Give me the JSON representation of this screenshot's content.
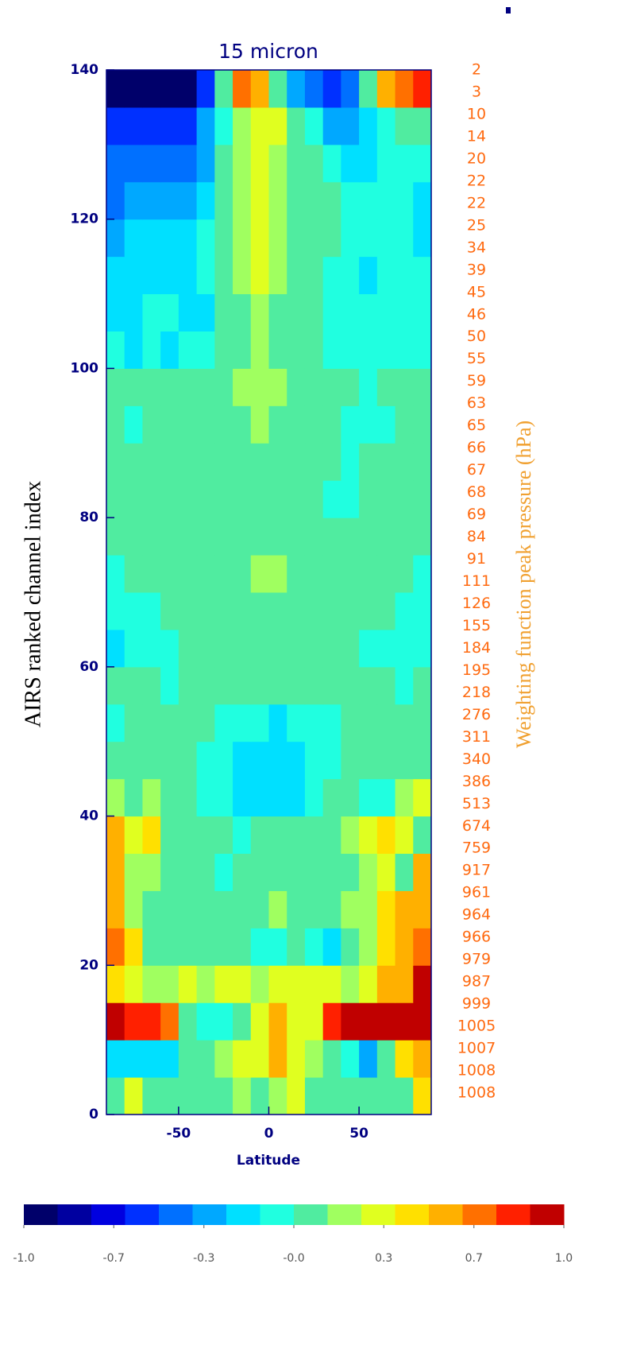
{
  "chart_data": {
    "type": "heatmap",
    "title": "15 micron",
    "xlabel": "Latitude",
    "ylabel": "AIRS ranked channel index",
    "y2label": "Weighting function peak pressure (hPa)",
    "xlim": [
      -90,
      90
    ],
    "ylim": [
      0,
      140
    ],
    "xticks": [
      -50,
      0,
      50
    ],
    "yticks": [
      0,
      20,
      40,
      60,
      80,
      100,
      120,
      140
    ],
    "right_labels": [
      2,
      3,
      10,
      14,
      20,
      22,
      22,
      25,
      34,
      39,
      45,
      46,
      50,
      55,
      59,
      63,
      65,
      66,
      67,
      68,
      69,
      84,
      91,
      111,
      126,
      155,
      184,
      195,
      218,
      276,
      311,
      340,
      386,
      513,
      674,
      759,
      917,
      961,
      964,
      966,
      979,
      987,
      999,
      1005,
      1007,
      1008,
      1008
    ],
    "clim": [
      -1,
      1
    ],
    "colormap": [
      "#00006a",
      "#0000a0",
      "#0000e0",
      "#0030ff",
      "#0070ff",
      "#00a8ff",
      "#00e0ff",
      "#20ffe0",
      "#50eca0",
      "#a0ff60",
      "#e0ff20",
      "#ffe000",
      "#ffb000",
      "#ff7000",
      "#ff2000",
      "#c00000"
    ],
    "colorbar_ticks": [
      {
        "value": -1,
        "label": "-1.0"
      },
      {
        "value": -0.667,
        "label": "-0.7"
      },
      {
        "value": -0.333,
        "label": "-0.3"
      },
      {
        "value": 0,
        "label": "-0.0"
      },
      {
        "value": 0.333,
        "label": "0.3"
      },
      {
        "value": 0.667,
        "label": "0.7"
      },
      {
        "value": 1,
        "label": "1.0"
      }
    ],
    "values": [
      [
        0,
        0.3,
        0.1,
        0.1,
        0,
        0.1,
        0.1,
        0.2,
        0.1,
        0.2,
        0.3,
        0.1,
        0,
        0,
        0,
        0.1,
        0.1,
        0.4
      ],
      [
        -0.2,
        -0.25,
        -0.25,
        -0.2,
        0,
        0.1,
        0.2,
        0.3,
        0.3,
        0.5,
        0.35,
        0.2,
        0,
        -0.1,
        -0.3,
        0,
        0.4,
        0.6
      ],
      [
        0.9,
        0.85,
        0.8,
        0.7,
        0,
        -0.1,
        -0.05,
        0.05,
        0.3,
        0.6,
        0.35,
        0.3,
        0.8,
        0.9,
        0.9,
        0.9,
        0.9,
        0.9
      ],
      [
        0.4,
        0.35,
        0.2,
        0.2,
        0.25,
        0.15,
        0.3,
        0.3,
        0.2,
        0.3,
        0.35,
        0.3,
        0.25,
        0.2,
        0.3,
        0.5,
        0.6,
        0.9
      ],
      [
        0.7,
        0.4,
        0.1,
        0.05,
        0,
        0.1,
        0,
        0.05,
        -0.1,
        -0.1,
        0,
        -0.1,
        -0.2,
        0.1,
        0.2,
        0.4,
        0.5,
        0.7
      ],
      [
        0.5,
        0.2,
        0.1,
        0,
        0.05,
        0.1,
        0,
        0.1,
        0.05,
        0.15,
        0.1,
        0.05,
        0.1,
        0.2,
        0.2,
        0.4,
        0.5,
        0.5
      ],
      [
        0.5,
        0.15,
        0.15,
        0.1,
        0.05,
        0.05,
        -0.1,
        0,
        0,
        0,
        0,
        0,
        0.1,
        0.1,
        0.2,
        0.3,
        0.1,
        0.6
      ],
      [
        0.5,
        0.3,
        0.4,
        0.1,
        0.05,
        0,
        0,
        -0.05,
        0,
        0,
        0,
        0,
        0.1,
        0.2,
        0.3,
        0.4,
        0.3,
        0.1
      ],
      [
        0.2,
        0.1,
        0.2,
        0.1,
        0,
        -0.1,
        -0.1,
        -0.2,
        -0.2,
        -0.2,
        -0.2,
        -0.1,
        0,
        0,
        -0.1,
        -0.1,
        0.2,
        0.3
      ],
      [
        0.1,
        0.1,
        0.1,
        0.05,
        0,
        -0.05,
        -0.1,
        -0.15,
        -0.2,
        -0.2,
        -0.2,
        -0.1,
        -0.05,
        0,
        0,
        0,
        0,
        0.05
      ],
      [
        -0.05,
        0,
        0,
        0,
        0,
        0,
        -0.05,
        -0.1,
        -0.1,
        -0.15,
        -0.1,
        -0.1,
        -0.05,
        0,
        0,
        0,
        0,
        0
      ],
      [
        0,
        0,
        0,
        -0.05,
        0,
        0,
        0,
        0,
        0,
        0,
        0,
        0,
        0,
        0,
        0,
        0,
        -0.05,
        0
      ],
      [
        -0.15,
        -0.1,
        -0.1,
        -0.05,
        0,
        0,
        0.05,
        0.1,
        0.1,
        0.1,
        0.05,
        0,
        0,
        0,
        -0.05,
        -0.05,
        -0.1,
        -0.1
      ],
      [
        -0.1,
        -0.1,
        -0.05,
        0,
        0,
        0,
        0.05,
        0.05,
        0.1,
        0.1,
        0.05,
        0,
        0,
        0,
        0,
        0,
        -0.05,
        -0.1
      ],
      [
        -0.05,
        0,
        0,
        0,
        0,
        0.05,
        0.1,
        0.1,
        0.15,
        0.15,
        0.1,
        0.1,
        0.05,
        0,
        0,
        0,
        0,
        -0.05
      ],
      [
        0,
        0,
        0.05,
        0,
        0,
        0,
        0.05,
        0.05,
        0.1,
        0.1,
        0.05,
        0,
        0,
        0,
        0,
        0,
        0,
        0
      ],
      [
        0,
        0,
        0,
        0.05,
        0,
        0,
        0.05,
        0.1,
        0.1,
        0.1,
        0.05,
        0,
        -0.05,
        -0.05,
        0,
        0,
        0,
        0
      ],
      [
        0,
        0,
        0,
        0,
        0,
        0,
        0,
        0.05,
        0.05,
        0.05,
        0,
        0,
        0,
        -0.05,
        0,
        0,
        0,
        0
      ],
      [
        0,
        -0.05,
        0,
        0,
        0,
        0,
        0.1,
        0.1,
        0.15,
        0.1,
        0.05,
        0,
        0,
        -0.05,
        -0.05,
        -0.05,
        0,
        0
      ],
      [
        0,
        0,
        0,
        0,
        0,
        0.05,
        0.1,
        0.2,
        0.2,
        0.15,
        0.1,
        0,
        0,
        0,
        -0.1,
        0,
        0,
        0
      ],
      [
        -0.1,
        -0.15,
        -0.1,
        -0.15,
        -0.1,
        -0.05,
        0.05,
        0.1,
        0.15,
        0.1,
        0.05,
        0,
        -0.05,
        -0.1,
        -0.05,
        -0.05,
        -0.1,
        -0.1
      ],
      [
        -0.2,
        -0.15,
        -0.1,
        -0.1,
        -0.2,
        -0.15,
        0,
        0.1,
        0.15,
        0.1,
        0.05,
        0,
        -0.05,
        -0.05,
        -0.05,
        -0.1,
        -0.1,
        -0.1
      ],
      [
        -0.2,
        -0.2,
        -0.2,
        -0.2,
        -0.15,
        -0.1,
        0,
        0.15,
        0.25,
        0.2,
        0.1,
        0,
        -0.05,
        -0.1,
        -0.15,
        -0.1,
        -0.1,
        -0.1
      ],
      [
        -0.3,
        -0.25,
        -0.25,
        -0.25,
        -0.2,
        -0.1,
        0.05,
        0.2,
        0.25,
        0.2,
        0.1,
        0.05,
        0,
        -0.05,
        -0.1,
        -0.1,
        -0.1,
        -0.15
      ],
      [
        -0.4,
        -0.35,
        -0.3,
        -0.35,
        -0.3,
        -0.2,
        0,
        0.15,
        0.25,
        0.2,
        0.1,
        0.05,
        0,
        -0.1,
        -0.1,
        -0.1,
        -0.1,
        -0.2
      ],
      [
        -0.45,
        -0.45,
        -0.45,
        -0.45,
        -0.45,
        -0.3,
        0,
        0.15,
        0.3,
        0.2,
        0.1,
        0,
        -0.1,
        -0.2,
        -0.2,
        -0.1,
        -0.1,
        -0.1
      ],
      [
        -0.6,
        -0.55,
        -0.55,
        -0.6,
        -0.55,
        -0.35,
        -0.05,
        0.2,
        0.35,
        0.3,
        0.1,
        -0.1,
        -0.3,
        -0.3,
        -0.2,
        -0.05,
        0.1,
        0.1
      ],
      [
        -0.95,
        -0.95,
        -0.95,
        -0.95,
        -0.9,
        -0.6,
        0.1,
        0.65,
        0.5,
        0.1,
        -0.3,
        -0.5,
        -0.55,
        -0.5,
        0,
        0.5,
        0.7,
        0.85
      ]
    ]
  }
}
